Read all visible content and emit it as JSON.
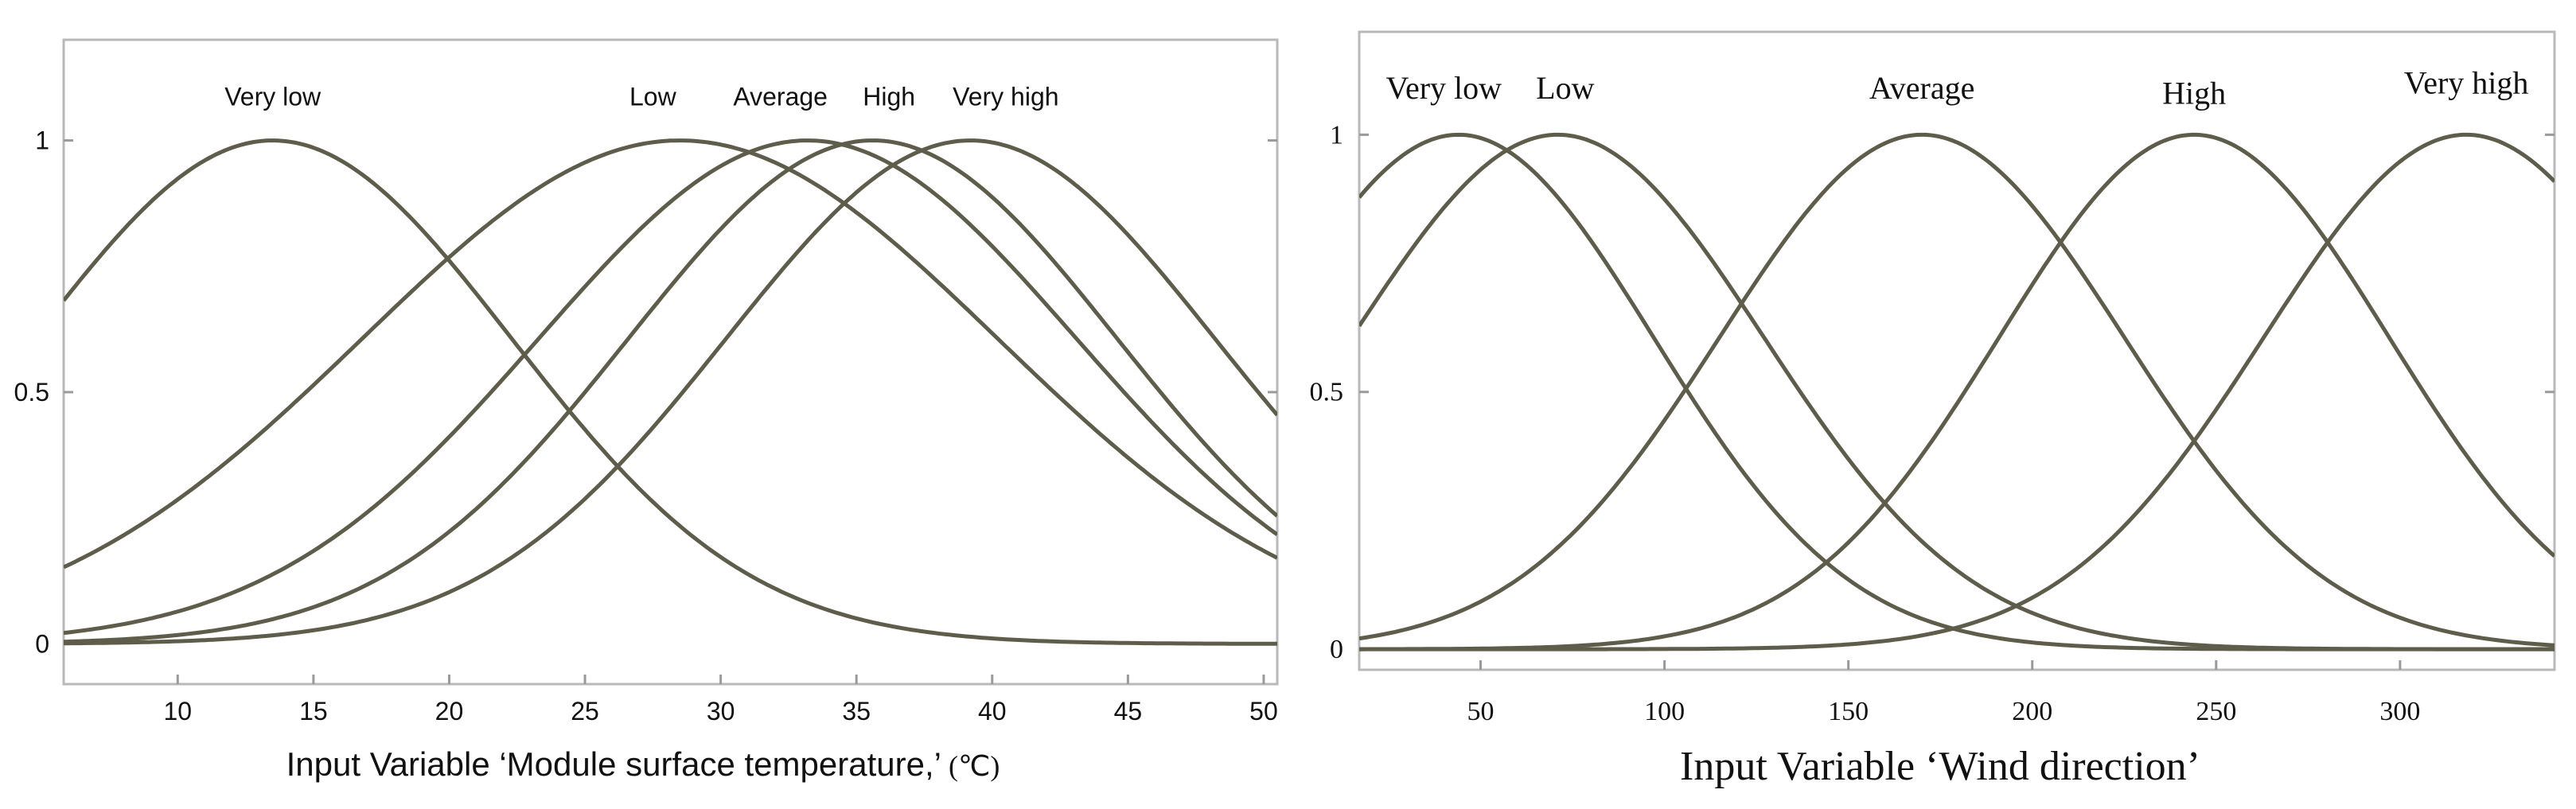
{
  "chart_data": [
    {
      "type": "line",
      "title": "",
      "xlabel": "Input Variable ‘Module surface temperature,’",
      "xlabel_unit": "(℃)",
      "ylabel": "",
      "xlim": [
        5.8,
        50.5
      ],
      "ylim": [
        -0.08,
        1.2
      ],
      "x_ticks": [
        10,
        15,
        20,
        25,
        30,
        35,
        40,
        45,
        50
      ],
      "y_ticks": [
        {
          "value": 0,
          "label": "0"
        },
        {
          "value": 0.5,
          "label": "0.5"
        },
        {
          "value": 1,
          "label": "1"
        }
      ],
      "series": [
        {
          "name": "Very low",
          "function": "gaussian",
          "center": 13.5,
          "sigma": 8.8,
          "label_x": 13.5,
          "label_y": 1.07
        },
        {
          "name": "Low",
          "function": "gaussian",
          "center": 28.5,
          "sigma": 11.7,
          "label_x": 27.5,
          "label_y": 1.07
        },
        {
          "name": "Average",
          "function": "gaussian",
          "center": 33.2,
          "sigma": 9.9,
          "label_x": 32.2,
          "label_y": 1.07
        },
        {
          "name": "High",
          "function": "gaussian",
          "center": 35.6,
          "sigma": 9.0,
          "label_x": 36.2,
          "label_y": 1.07
        },
        {
          "name": "Very high",
          "function": "gaussian",
          "center": 39.2,
          "sigma": 9.0,
          "label_x": 40.5,
          "label_y": 1.07
        }
      ]
    },
    {
      "type": "line",
      "title": "",
      "xlabel": "Input Variable ‘Wind direction’",
      "ylabel": "",
      "xlim": [
        17,
        342
      ],
      "ylim": [
        -0.04,
        1.2
      ],
      "x_ticks": [
        50,
        100,
        150,
        200,
        250,
        300
      ],
      "y_ticks": [
        {
          "value": 0,
          "label": "0"
        },
        {
          "value": 0.5,
          "label": "0.5"
        },
        {
          "value": 1,
          "label": "1"
        }
      ],
      "series": [
        {
          "name": "Very low",
          "function": "gaussian",
          "center": 44,
          "sigma": 53,
          "label_x": 40,
          "label_y": 1.07
        },
        {
          "name": "Low",
          "function": "gaussian",
          "center": 71,
          "sigma": 56,
          "label_x": 73,
          "label_y": 1.07
        },
        {
          "name": "Average",
          "function": "gaussian",
          "center": 170,
          "sigma": 55,
          "label_x": 170,
          "label_y": 1.07
        },
        {
          "name": "High",
          "function": "gaussian",
          "center": 244,
          "sigma": 53,
          "label_x": 244,
          "label_y": 1.06
        },
        {
          "name": "Very high",
          "function": "gaussian",
          "center": 318,
          "sigma": 55,
          "label_x": 318,
          "label_y": 1.08
        }
      ]
    }
  ]
}
